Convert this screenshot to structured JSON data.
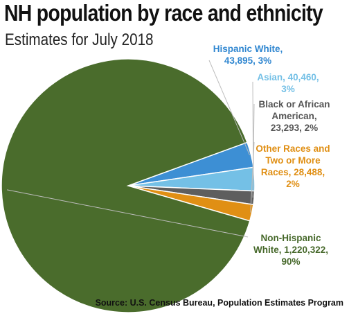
{
  "header": {
    "title": "NH population by race and ethnicity",
    "subtitle": "Estimates for July 2018"
  },
  "footer": {
    "source": "Source: U.S. Census Bureau, Population Estimates Program"
  },
  "chart_data": {
    "type": "pie",
    "title": "NH population by race and ethnicity",
    "subtitle": "Estimates for July 2018",
    "slices": [
      {
        "name": "Non-Hispanic White",
        "value": 1220322,
        "percent": 90,
        "color": "#4a6c2c",
        "label_lines": [
          "Non-Hispanic",
          "White, 1,220,322,",
          "90%"
        ]
      },
      {
        "name": "Hispanic White",
        "value": 43895,
        "percent": 3,
        "color": "#3d8fd4",
        "label_lines": [
          "Hispanic White,",
          "43,895, 3%"
        ]
      },
      {
        "name": "Asian",
        "value": 40460,
        "percent": 3,
        "color": "#74c0e6",
        "label_lines": [
          "Asian, 40,460,",
          "3%"
        ]
      },
      {
        "name": "Black or African American",
        "value": 23293,
        "percent": 2,
        "color": "#5e5e5e",
        "label_lines": [
          "Black or African",
          "American,",
          "23,293, 2%"
        ]
      },
      {
        "name": "Other Races and Two or More Races",
        "value": 28488,
        "percent": 2,
        "color": "#e08f14",
        "label_lines": [
          "Other Races and",
          "Two or More",
          "Races, 28,488,",
          "2%"
        ]
      }
    ],
    "label_text_colors": {
      "Non-Hispanic White": "#46682a",
      "Hispanic White": "#2f86d0",
      "Asian": "#74c0e6",
      "Black or African American": "#555555",
      "Other Races and Two or More Races": "#e08f14"
    }
  }
}
